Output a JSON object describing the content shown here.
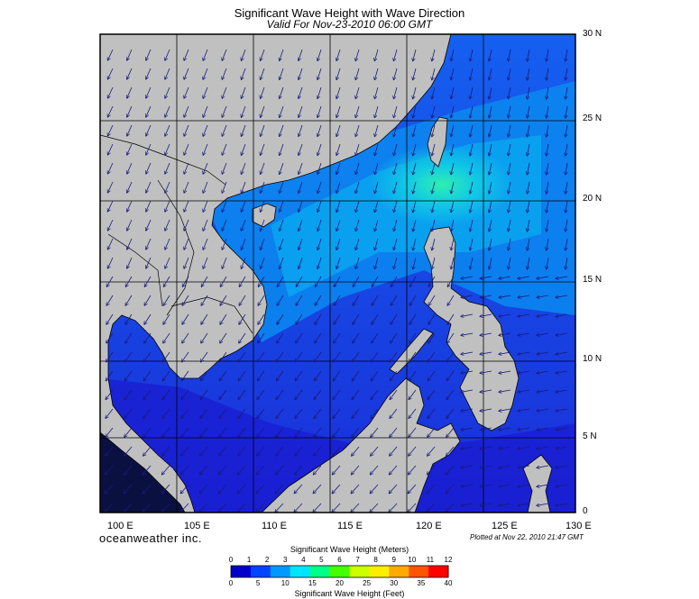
{
  "header": {
    "title": "Significant Wave Height with Wave Direction",
    "subtitle": "Valid For Nov-23-2010 06:00 GMT"
  },
  "axes": {
    "lon_labels": [
      "100 E",
      "105 E",
      "110 E",
      "115 E",
      "120 E",
      "125 E",
      "130 E"
    ],
    "lat_labels": [
      "30 N",
      "25 N",
      "20 N",
      "15 N",
      "10 N",
      "5 N",
      "0"
    ]
  },
  "footer": {
    "brand": "oceanweather inc.",
    "plotted": "Plotted at Nov 22, 2010 21:47 GMT"
  },
  "colorbar": {
    "meters_label": "Significant Wave Height (Meters)",
    "feet_label": "Significant Wave Height (Feet)",
    "meters_ticks": [
      "0",
      "1",
      "2",
      "3",
      "4",
      "5",
      "6",
      "7",
      "8",
      "9",
      "10",
      "11",
      "12"
    ],
    "feet_ticks": [
      "0",
      "5",
      "10",
      "15",
      "20",
      "25",
      "30",
      "35",
      "40"
    ],
    "colors": [
      "#0000c8",
      "#0044ff",
      "#0099ff",
      "#00e5ff",
      "#00ff88",
      "#44ff00",
      "#ccff00",
      "#ffee00",
      "#ffaa00",
      "#ff5500",
      "#ff0000"
    ]
  },
  "colors": {
    "land": "#c0c0c0",
    "sea_low": "#1a33e0",
    "sea_mid": "#0a7ff5",
    "sea_high": "#19d4c8"
  }
}
